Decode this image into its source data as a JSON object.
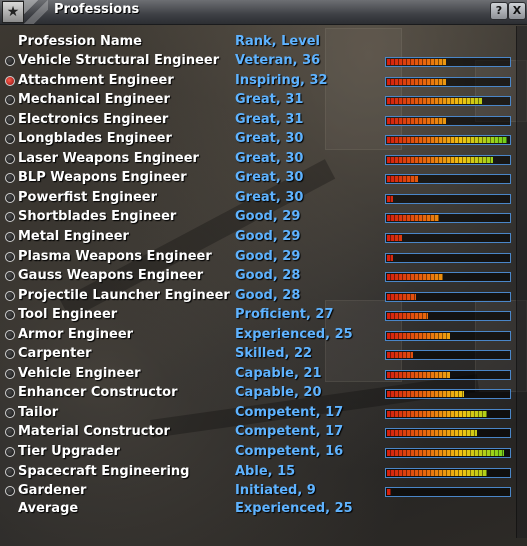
{
  "window": {
    "title": "Professions"
  },
  "titlebar": {
    "logo_icon": "star-icon",
    "help_label": "?",
    "close_label": "X"
  },
  "header": {
    "name_label": "Profession Name",
    "rank_label": "Rank, Level"
  },
  "professions": [
    {
      "name": "Vehicle Structural Engineer",
      "rank": "Veteran, 36",
      "progress": 0.48
    },
    {
      "name": "Attachment Engineer",
      "rank": "Inspiring, 32",
      "progress": 0.48,
      "selected": true
    },
    {
      "name": "Mechanical Engineer",
      "rank": "Great, 31",
      "progress": 0.78
    },
    {
      "name": "Electronics Engineer",
      "rank": "Great, 31",
      "progress": 0.48
    },
    {
      "name": "Longblades Engineer",
      "rank": "Great, 30",
      "progress": 0.98
    },
    {
      "name": "Laser Weapons Engineer",
      "rank": "Great, 30",
      "progress": 0.87
    },
    {
      "name": "BLP Weapons Engineer",
      "rank": "Great, 30",
      "progress": 0.25
    },
    {
      "name": "Powerfist Engineer",
      "rank": "Great, 30",
      "progress": 0.05
    },
    {
      "name": "Shortblades Engineer",
      "rank": "Good, 29",
      "progress": 0.43
    },
    {
      "name": "Metal Engineer",
      "rank": "Good, 29",
      "progress": 0.12
    },
    {
      "name": "Plasma Weapons Engineer",
      "rank": "Good, 29",
      "progress": 0.05
    },
    {
      "name": "Gauss Weapons Engineer",
      "rank": "Good, 28",
      "progress": 0.46
    },
    {
      "name": "Projectile Launcher Engineer",
      "rank": "Good, 28",
      "progress": 0.24
    },
    {
      "name": "Tool Engineer",
      "rank": "Proficient, 27",
      "progress": 0.34
    },
    {
      "name": "Armor Engineer",
      "rank": "Experienced, 25",
      "progress": 0.52
    },
    {
      "name": "Carpenter",
      "rank": "Skilled, 22",
      "progress": 0.21
    },
    {
      "name": "Vehicle Engineer",
      "rank": "Capable, 21",
      "progress": 0.52
    },
    {
      "name": "Enhancer Constructor",
      "rank": "Capable, 20",
      "progress": 0.63
    },
    {
      "name": "Tailor",
      "rank": "Competent, 17",
      "progress": 0.82
    },
    {
      "name": "Material Constructor",
      "rank": "Competent, 17",
      "progress": 0.74
    },
    {
      "name": "Tier Upgrader",
      "rank": "Competent, 16",
      "progress": 0.96
    },
    {
      "name": "Spacecraft Engineering",
      "rank": "Able, 15",
      "progress": 0.82
    },
    {
      "name": "Gardener",
      "rank": "Initiated, 9",
      "progress": 0.03
    }
  ],
  "average": {
    "label": "Average",
    "rank": "Experienced, 25"
  }
}
